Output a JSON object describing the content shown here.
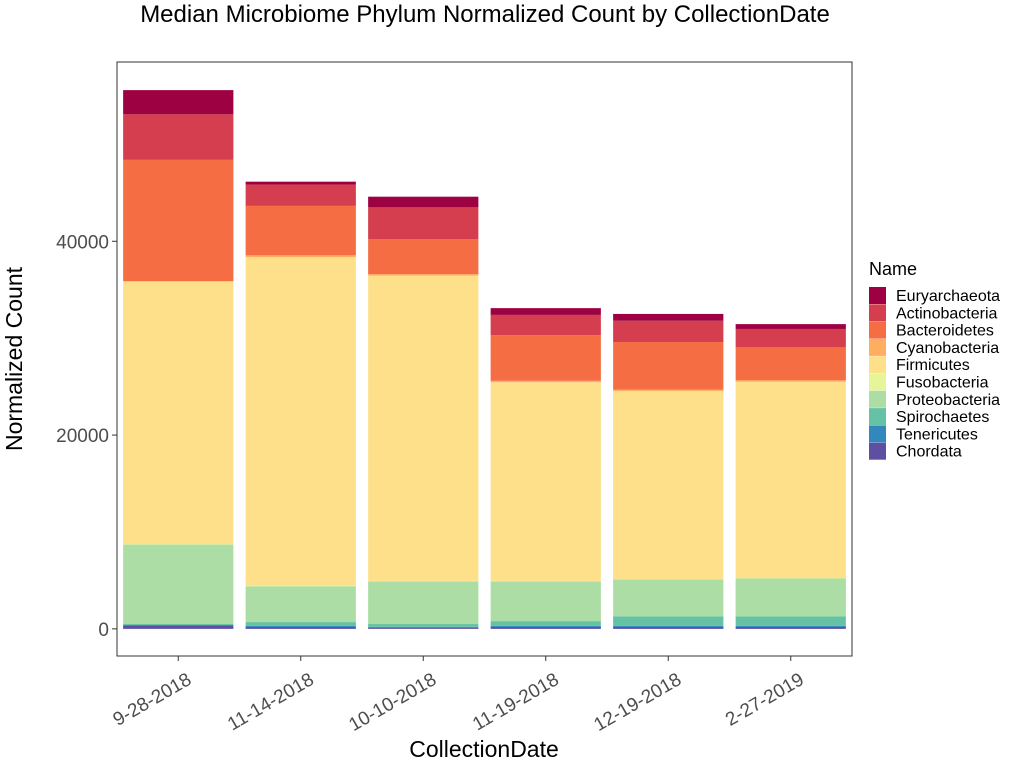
{
  "chart_data": {
    "type": "bar",
    "stacked": true,
    "title": "Median Microbiome Phylum Normalized Count by CollectionDate",
    "xlabel": "CollectionDate",
    "ylabel": "Normalized Count",
    "ylim": [
      -2800,
      58500
    ],
    "yticks": [
      0,
      20000,
      40000
    ],
    "ytick_labels": [
      "0",
      "20000",
      "40000"
    ],
    "grid": false,
    "legend_title": "Name",
    "legend_position": "right",
    "categories": [
      "9-28-2018",
      "11-14-2018",
      "10-10-2018",
      "11-19-2018",
      "12-19-2018",
      "2-27-2019"
    ],
    "series": [
      {
        "name": "Euryarchaeota",
        "color": "#9e0142",
        "values": [
          2500,
          300,
          1100,
          700,
          700,
          500
        ]
      },
      {
        "name": "Actinobacteria",
        "color": "#d53e4f",
        "values": [
          4700,
          2200,
          3300,
          2100,
          2200,
          1900
        ]
      },
      {
        "name": "Bacteroidetes",
        "color": "#f46d43",
        "values": [
          12500,
          5100,
          3600,
          4700,
          4900,
          3400
        ]
      },
      {
        "name": "Cyanobacteria",
        "color": "#fdae61",
        "values": [
          50,
          200,
          150,
          150,
          150,
          150
        ]
      },
      {
        "name": "Firmicutes",
        "color": "#fee08b",
        "values": [
          27100,
          33900,
          31500,
          20500,
          19400,
          20250
        ]
      },
      {
        "name": "Fusobacteria",
        "color": "#e6f598",
        "values": [
          50,
          50,
          50,
          50,
          50,
          50
        ]
      },
      {
        "name": "Proteobacteria",
        "color": "#abdda4",
        "values": [
          8200,
          3700,
          4400,
          4100,
          3800,
          3900
        ]
      },
      {
        "name": "Spirochaetes",
        "color": "#66c2a5",
        "values": [
          100,
          400,
          300,
          500,
          1000,
          1000
        ]
      },
      {
        "name": "Tenericutes",
        "color": "#3288bd",
        "values": [
          100,
          100,
          100,
          100,
          100,
          100
        ]
      },
      {
        "name": "Chordata",
        "color": "#5e4fa2",
        "values": [
          300,
          200,
          100,
          200,
          200,
          200
        ]
      }
    ]
  }
}
